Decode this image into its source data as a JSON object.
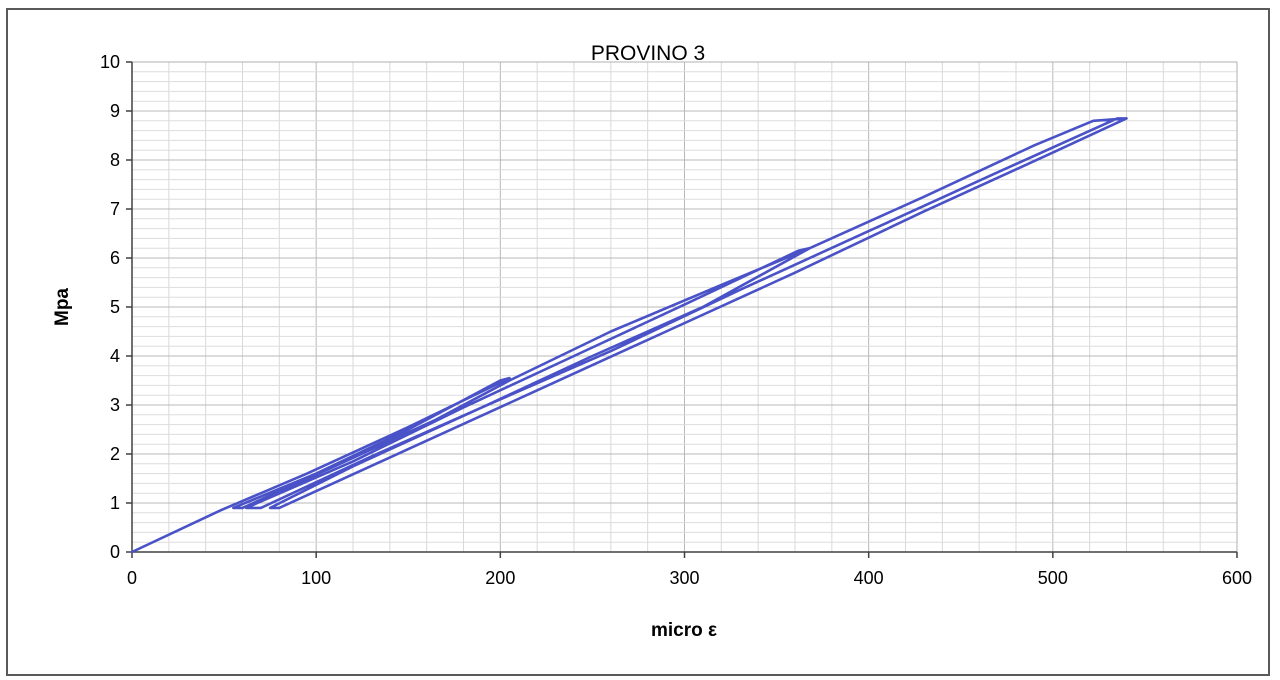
{
  "chart_data": {
    "type": "line",
    "title": "PROVINO 3",
    "xlabel": "micro ε",
    "ylabel": "Mpa",
    "xlim": [
      0,
      600
    ],
    "ylim": [
      0,
      10
    ],
    "x_ticks": [
      "0",
      "100",
      "200",
      "300",
      "400",
      "500",
      "600"
    ],
    "y_ticks": [
      "0",
      "1",
      "2",
      "3",
      "4",
      "5",
      "6",
      "7",
      "8",
      "9",
      "10"
    ],
    "grid": true,
    "legend": "none",
    "line_color": "#4a52c8",
    "series": [
      {
        "values": [
          [
            0,
            0
          ],
          [
            48,
            0.85
          ],
          [
            95,
            1.6
          ],
          [
            150,
            2.55
          ],
          [
            205,
            3.55
          ],
          [
            200,
            3.5
          ],
          [
            150,
            2.5
          ],
          [
            100,
            1.6
          ],
          [
            55,
            0.9
          ],
          [
            60,
            0.9
          ],
          [
            110,
            1.75
          ],
          [
            165,
            2.7
          ],
          [
            205,
            3.5
          ],
          [
            260,
            4.5
          ],
          [
            320,
            5.45
          ],
          [
            368,
            6.2
          ],
          [
            362,
            6.15
          ],
          [
            300,
            5.05
          ],
          [
            240,
            4.0
          ],
          [
            180,
            2.95
          ],
          [
            120,
            1.85
          ],
          [
            62,
            0.9
          ],
          [
            70,
            0.9
          ],
          [
            130,
            1.95
          ],
          [
            190,
            2.95
          ],
          [
            250,
            4.0
          ],
          [
            310,
            5.0
          ],
          [
            368,
            6.2
          ],
          [
            430,
            7.25
          ],
          [
            490,
            8.3
          ],
          [
            522,
            8.8
          ],
          [
            540,
            8.85
          ],
          [
            535,
            8.85
          ],
          [
            470,
            7.75
          ],
          [
            400,
            6.55
          ],
          [
            330,
            5.35
          ],
          [
            260,
            4.1
          ],
          [
            190,
            2.95
          ],
          [
            120,
            1.75
          ],
          [
            75,
            0.9
          ],
          [
            80,
            0.9
          ],
          [
            150,
            2.1
          ],
          [
            220,
            3.3
          ],
          [
            290,
            4.5
          ],
          [
            360,
            5.7
          ],
          [
            430,
            6.95
          ],
          [
            500,
            8.15
          ],
          [
            540,
            8.85
          ]
        ]
      }
    ]
  }
}
